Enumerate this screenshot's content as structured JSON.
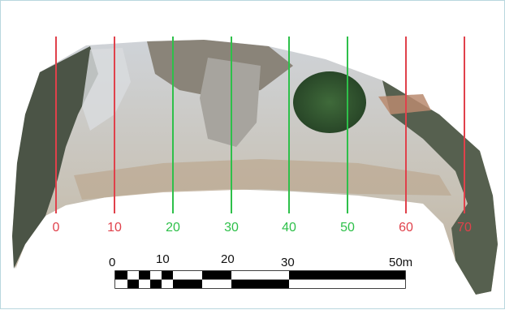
{
  "map": {
    "colors": {
      "red": "#e0414b",
      "green": "#2ec04a"
    },
    "transects": [
      {
        "label": "0",
        "color": "red"
      },
      {
        "label": "10",
        "color": "red"
      },
      {
        "label": "20",
        "color": "green"
      },
      {
        "label": "30",
        "color": "green"
      },
      {
        "label": "40",
        "color": "green"
      },
      {
        "label": "50",
        "color": "green"
      },
      {
        "label": "60",
        "color": "red"
      },
      {
        "label": "70",
        "color": "red"
      }
    ],
    "scale_bar": {
      "labels": [
        "0",
        "10",
        "20",
        "30",
        "50m"
      ]
    }
  }
}
